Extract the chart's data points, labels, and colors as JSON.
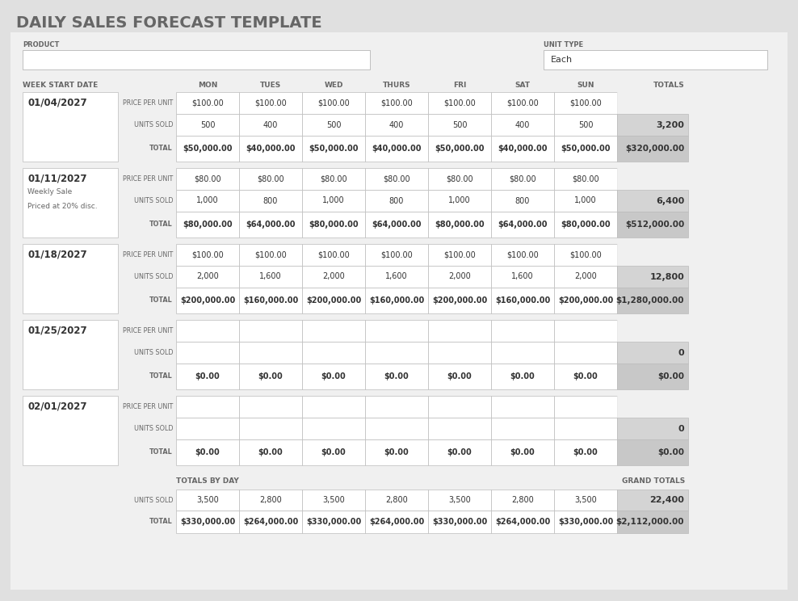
{
  "title": "DAILY SALES FORECAST TEMPLATE",
  "days": [
    "MON",
    "TUES",
    "WED",
    "THURS",
    "FRI",
    "SAT",
    "SUN"
  ],
  "weeks": [
    {
      "date": "01/04/2027",
      "notes": [
        "",
        "",
        ""
      ],
      "price_per_unit": [
        100,
        100,
        100,
        100,
        100,
        100,
        100
      ],
      "units_sold": [
        500,
        400,
        500,
        400,
        500,
        400,
        500
      ],
      "totals_units": 3200,
      "daily_totals": [
        50000,
        40000,
        50000,
        40000,
        50000,
        40000,
        50000
      ],
      "week_total": 320000
    },
    {
      "date": "01/11/2027",
      "notes": [
        "Weekly Sale",
        "Priced at 20% disc.",
        ""
      ],
      "price_per_unit": [
        80,
        80,
        80,
        80,
        80,
        80,
        80
      ],
      "units_sold": [
        1000,
        800,
        1000,
        800,
        1000,
        800,
        1000
      ],
      "totals_units": 6400,
      "daily_totals": [
        80000,
        64000,
        80000,
        64000,
        80000,
        64000,
        80000
      ],
      "week_total": 512000
    },
    {
      "date": "01/18/2027",
      "notes": [
        "",
        "",
        ""
      ],
      "price_per_unit": [
        100,
        100,
        100,
        100,
        100,
        100,
        100
      ],
      "units_sold": [
        2000,
        1600,
        2000,
        1600,
        2000,
        1600,
        2000
      ],
      "totals_units": 12800,
      "daily_totals": [
        200000,
        160000,
        200000,
        160000,
        200000,
        160000,
        200000
      ],
      "week_total": 1280000
    },
    {
      "date": "01/25/2027",
      "notes": [
        "",
        "",
        ""
      ],
      "price_per_unit": [
        null,
        null,
        null,
        null,
        null,
        null,
        null
      ],
      "units_sold": [
        null,
        null,
        null,
        null,
        null,
        null,
        null
      ],
      "totals_units": 0,
      "daily_totals": [
        0,
        0,
        0,
        0,
        0,
        0,
        0
      ],
      "week_total": 0
    },
    {
      "date": "02/01/2027",
      "notes": [
        "",
        "",
        ""
      ],
      "price_per_unit": [
        null,
        null,
        null,
        null,
        null,
        null,
        null
      ],
      "units_sold": [
        null,
        null,
        null,
        null,
        null,
        null,
        null
      ],
      "totals_units": 0,
      "daily_totals": [
        0,
        0,
        0,
        0,
        0,
        0,
        0
      ],
      "week_total": 0
    }
  ],
  "totals_by_day_units": [
    3500,
    2800,
    3500,
    2800,
    3500,
    2800,
    3500
  ],
  "totals_by_day_total": [
    330000,
    264000,
    330000,
    264000,
    330000,
    264000,
    330000
  ],
  "grand_total_units": 22400,
  "grand_total": 2112000,
  "bg_outer": "#e0e0e0",
  "bg_panel": "#f0f0f0",
  "bg_white": "#ffffff",
  "bg_gray_total": "#c8c8c8",
  "bg_gray_units": "#d4d4d4",
  "text_dark": "#333333",
  "text_mid": "#666666",
  "title_color": "#666666",
  "border_color": "#bbbbbb",
  "border_color2": "#aaaaaa"
}
